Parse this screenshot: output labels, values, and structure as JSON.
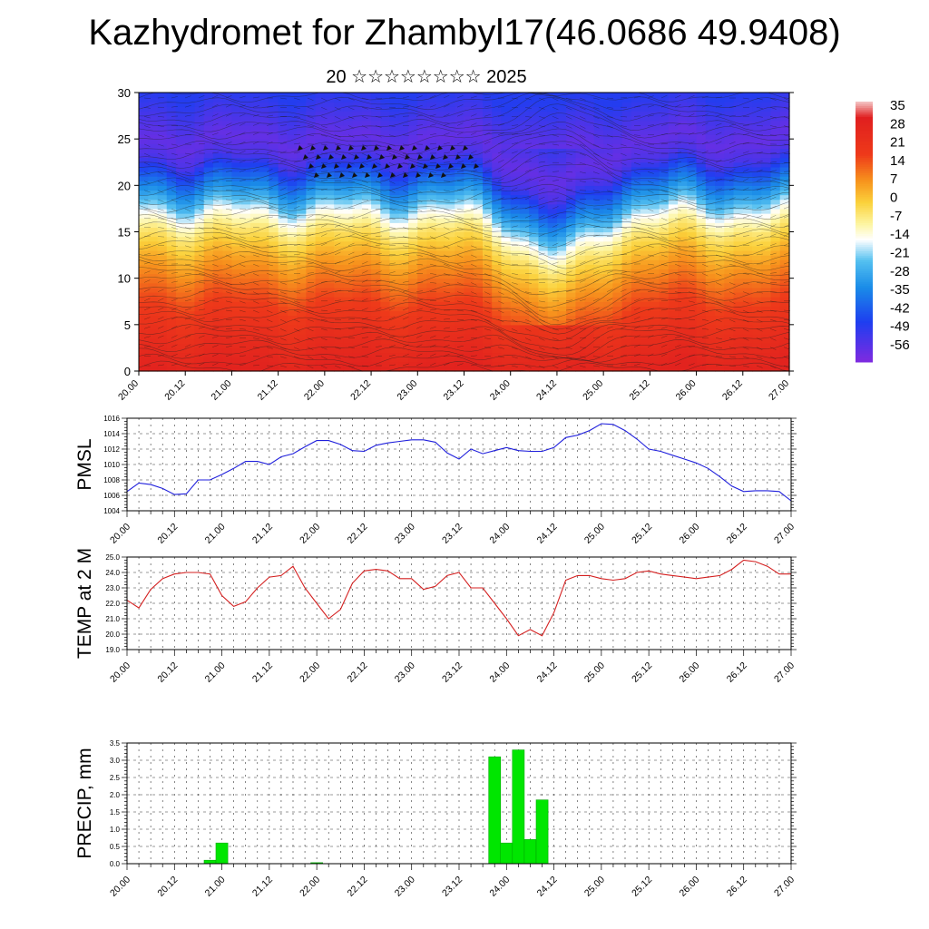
{
  "title": "Kazhydromet for Zhambyl17(46.0686 49.9408)",
  "subtitle": "20 ☆☆☆☆☆☆☆☆ 2025",
  "x_tick_labels": [
    "20.00",
    "20.12",
    "21.00",
    "21.12",
    "22.00",
    "22.12",
    "23.00",
    "23.12",
    "24.00",
    "24.12",
    "25.00",
    "25.12",
    "26.00",
    "26.12",
    "27.00"
  ],
  "chart_data": [
    {
      "type": "heatmap",
      "xlabel": "",
      "ylabel": "",
      "ylim": [
        0,
        30
      ],
      "y_ticks": [
        0,
        5,
        10,
        15,
        20,
        25,
        30
      ],
      "colorbar": {
        "labels": [
          "35",
          "28",
          "21",
          "14",
          "7",
          "0",
          "-7",
          "-14",
          "-21",
          "-28",
          "-35",
          "-42",
          "-49",
          "-56"
        ],
        "stops": [
          {
            "v": 38,
            "c": "#f4c8c8"
          },
          {
            "v": 32,
            "c": "#e01f1f"
          },
          {
            "v": 18,
            "c": "#ee3a1a"
          },
          {
            "v": 8,
            "c": "#f7941d"
          },
          {
            "v": 0,
            "c": "#fbd13b"
          },
          {
            "v": -8,
            "c": "#fdf5a0"
          },
          {
            "v": -14,
            "c": "#ffffff"
          },
          {
            "v": -22,
            "c": "#54c0f0"
          },
          {
            "v": -32,
            "c": "#1a8ce8"
          },
          {
            "v": -45,
            "c": "#1e3ef0"
          },
          {
            "v": -60,
            "c": "#7f2ae0"
          }
        ]
      },
      "profile_levels": [
        0,
        4,
        8,
        12,
        15,
        17,
        19,
        21,
        23,
        25,
        27,
        30
      ],
      "profile_values": [
        30,
        24,
        16,
        6,
        -4,
        -14,
        -28,
        -40,
        -52,
        -56,
        -52,
        -46
      ],
      "disturbance": {
        "x_center": 24.5,
        "x_width": 0.5,
        "uplift": 5
      }
    },
    {
      "type": "line",
      "ylabel": "PMSL",
      "ylim": [
        1004,
        1016
      ],
      "y_ticks": [
        1004,
        1006,
        1008,
        1010,
        1012,
        1014,
        1016
      ],
      "color": "#1f1fdc",
      "x": [
        20.0,
        20.125,
        20.25,
        20.375,
        20.5,
        20.625,
        20.75,
        20.875,
        21.0,
        21.125,
        21.25,
        21.375,
        21.5,
        21.625,
        21.75,
        21.875,
        22.0,
        22.125,
        22.25,
        22.375,
        22.5,
        22.625,
        22.75,
        22.875,
        23.0,
        23.125,
        23.25,
        23.375,
        23.5,
        23.625,
        23.75,
        23.875,
        24.0,
        24.125,
        24.25,
        24.375,
        24.5,
        24.625,
        24.75,
        24.875,
        25.0,
        25.125,
        25.25,
        25.375,
        25.5,
        25.625,
        25.75,
        25.875,
        26.0,
        26.125,
        26.25,
        26.375,
        26.5,
        26.625,
        26.75,
        26.875,
        27.0
      ],
      "values": [
        1006.5,
        1007.6,
        1007.4,
        1006.9,
        1006.1,
        1006.2,
        1008.0,
        1008.0,
        1008.7,
        1009.5,
        1010.4,
        1010.4,
        1010.0,
        1011.0,
        1011.4,
        1012.3,
        1013.1,
        1013.1,
        1012.6,
        1011.8,
        1011.7,
        1012.5,
        1012.8,
        1013.0,
        1013.2,
        1013.2,
        1012.9,
        1011.5,
        1010.7,
        1012.0,
        1011.4,
        1011.8,
        1012.2,
        1011.8,
        1011.7,
        1011.7,
        1012.2,
        1013.5,
        1013.8,
        1014.4,
        1015.3,
        1015.2,
        1014.4,
        1013.3,
        1012.0,
        1011.7,
        1011.2,
        1010.7,
        1010.2,
        1009.5,
        1008.4,
        1007.2,
        1006.5,
        1006.6,
        1006.6,
        1006.5,
        1005.3
      ]
    },
    {
      "type": "line",
      "ylabel": "TEMP at 2 M",
      "ylim": [
        19.0,
        25.0
      ],
      "y_ticks": [
        "19.0",
        "20.0",
        "21.0",
        "22.0",
        "23.0",
        "24.0",
        "25.0"
      ],
      "color": "#d42020",
      "x": [
        20.0,
        20.125,
        20.25,
        20.375,
        20.5,
        20.625,
        20.75,
        20.875,
        21.0,
        21.125,
        21.25,
        21.375,
        21.5,
        21.625,
        21.75,
        21.875,
        22.0,
        22.125,
        22.25,
        22.375,
        22.5,
        22.625,
        22.75,
        22.875,
        23.0,
        23.125,
        23.25,
        23.375,
        23.5,
        23.625,
        23.75,
        23.875,
        24.0,
        24.125,
        24.25,
        24.375,
        24.5,
        24.625,
        24.75,
        24.875,
        25.0,
        25.125,
        25.25,
        25.375,
        25.5,
        25.625,
        25.75,
        25.875,
        26.0,
        26.125,
        26.25,
        26.375,
        26.5,
        26.625,
        26.75,
        26.875,
        27.0
      ],
      "values": [
        22.2,
        21.7,
        22.9,
        23.6,
        23.9,
        24.0,
        24.0,
        23.9,
        22.5,
        21.8,
        22.1,
        23.0,
        23.7,
        23.8,
        24.4,
        23.0,
        22.0,
        21.0,
        21.6,
        23.3,
        24.1,
        24.2,
        24.1,
        23.6,
        23.6,
        22.9,
        23.1,
        23.8,
        24.0,
        23.0,
        23.0,
        22.0,
        21.0,
        19.9,
        20.3,
        19.9,
        21.4,
        23.5,
        23.8,
        23.8,
        23.6,
        23.5,
        23.6,
        24.0,
        24.1,
        23.9,
        23.8,
        23.7,
        23.6,
        23.7,
        23.8,
        24.2,
        24.8,
        24.7,
        24.4,
        23.9,
        23.9
      ]
    },
    {
      "type": "bar",
      "ylabel": "PRECIP, mm",
      "ylim": [
        0,
        3.5
      ],
      "y_ticks": [
        "0.0",
        "0.5",
        "1.0",
        "1.5",
        "2.0",
        "2.5",
        "3.0",
        "3.5"
      ],
      "color": "#00e600",
      "x": [
        20.875,
        21.0,
        22.0,
        23.875,
        24.0,
        24.125,
        24.25,
        24.375
      ],
      "values": [
        0.1,
        0.6,
        0.03,
        3.1,
        0.6,
        3.3,
        0.7,
        1.85
      ]
    }
  ]
}
